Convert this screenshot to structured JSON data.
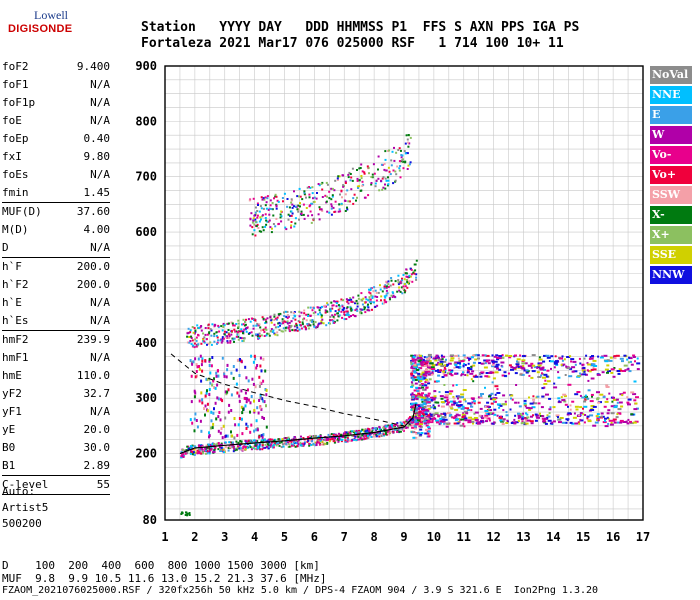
{
  "logo": {
    "line1": "Lowell",
    "line2": "DIGISONDE"
  },
  "header": {
    "line1": "Station   YYYY DAY   DDD HHMMSS P1  FFS S AXN PPS IGA PS",
    "line2": "Fortaleza 2021 Mar17 076 025000 RSF   1 714 100 10+ 11"
  },
  "params": [
    {
      "k": "foF2",
      "v": "9.400"
    },
    {
      "k": "foF1",
      "v": "N/A"
    },
    {
      "k": "foF1p",
      "v": "N/A"
    },
    {
      "k": "foE",
      "v": "N/A"
    },
    {
      "k": "foEp",
      "v": "0.40"
    },
    {
      "k": "fxI",
      "v": "9.80"
    },
    {
      "k": "foEs",
      "v": "N/A"
    },
    {
      "k": "fmin",
      "v": "1.45",
      "sep": true
    },
    {
      "k": "MUF(D)",
      "v": "37.60"
    },
    {
      "k": "M(D)",
      "v": "4.00"
    },
    {
      "k": "D",
      "v": "N/A",
      "sep": true
    },
    {
      "k": "h`F",
      "v": "200.0"
    },
    {
      "k": "h`F2",
      "v": "200.0"
    },
    {
      "k": "h`E",
      "v": "N/A"
    },
    {
      "k": "h`Es",
      "v": "N/A",
      "sep": true
    },
    {
      "k": "hmF2",
      "v": "239.9"
    },
    {
      "k": "hmF1",
      "v": "N/A"
    },
    {
      "k": "hmE",
      "v": "110.0"
    },
    {
      "k": "yF2",
      "v": "32.7"
    },
    {
      "k": "yF1",
      "v": "N/A"
    },
    {
      "k": "yE",
      "v": "20.0"
    },
    {
      "k": "B0",
      "v": "30.0"
    },
    {
      "k": "B1",
      "v": "2.89",
      "sep": true
    },
    {
      "k": "C-level",
      "v": "55",
      "sep": true
    }
  ],
  "auto": {
    "line1": "Auto:",
    "line2": "Artist5",
    "line3": "500200"
  },
  "legend": [
    {
      "label": "NoVal",
      "color": "#8c8c8c"
    },
    {
      "label": "NNE",
      "color": "#00bfff"
    },
    {
      "label": "E",
      "color": "#3aa0e8"
    },
    {
      "label": "W",
      "color": "#b000a8"
    },
    {
      "label": "Vo-",
      "color": "#e8008c"
    },
    {
      "label": "Vo+",
      "color": "#f0003c"
    },
    {
      "label": "SSW",
      "color": "#f4a0a8"
    },
    {
      "label": "X-",
      "color": "#007a10"
    },
    {
      "label": "X+",
      "color": "#8cc060"
    },
    {
      "label": "SSE",
      "color": "#d0d000"
    },
    {
      "label": "NNW",
      "color": "#1010e0"
    }
  ],
  "chart_data": {
    "type": "scatter",
    "title": "",
    "xlabel": "",
    "ylabel": "",
    "xlim": [
      1,
      17
    ],
    "ylim": [
      80,
      900
    ],
    "xticks": [
      1,
      2,
      3,
      4,
      5,
      6,
      7,
      8,
      9,
      10,
      11,
      12,
      13,
      14,
      15,
      16,
      17
    ],
    "yticks": [
      80,
      200,
      300,
      400,
      500,
      600,
      700,
      800,
      900
    ],
    "grid": true,
    "traces": [
      {
        "name": "O-trace",
        "x": [
          1.5,
          2,
          3,
          4,
          5,
          6,
          7,
          8,
          9,
          9.3,
          9.4
        ],
        "y": [
          200,
          205,
          210,
          214,
          218,
          222,
          228,
          236,
          248,
          262,
          280
        ]
      },
      {
        "name": "second-hop",
        "x": [
          1.7,
          3,
          4,
          5,
          6,
          7,
          8,
          9,
          9.4
        ],
        "y": [
          405,
          410,
          420,
          430,
          440,
          455,
          475,
          505,
          525
        ]
      },
      {
        "name": "third-hop",
        "x": [
          3.8,
          4.5,
          5,
          6,
          7,
          8,
          8.8,
          9.2
        ],
        "y": [
          615,
          620,
          625,
          640,
          660,
          690,
          715,
          740
        ]
      }
    ],
    "model_profile": {
      "x": [
        1.5,
        2,
        3,
        4,
        5,
        6,
        7,
        8,
        9,
        9.3,
        9.4
      ],
      "y": [
        200,
        210,
        215,
        219,
        223,
        228,
        232,
        238,
        248,
        265,
        290
      ]
    },
    "model_dashed": {
      "x": [
        1.2,
        2,
        3,
        4,
        5,
        6,
        7,
        8,
        9
      ],
      "y": [
        380,
        345,
        325,
        310,
        296,
        285,
        272,
        262,
        250
      ]
    },
    "spread_region": {
      "x": [
        9.2,
        16.8
      ],
      "y": [
        250,
        380
      ]
    },
    "dtable": {
      "d_label": "D",
      "d": [
        "100",
        "200",
        "400",
        "600",
        "800",
        "1000",
        "1500",
        "3000"
      ],
      "d_unit": "[km]",
      "muf_label": "MUF",
      "muf": [
        "9.8",
        "9.9",
        "10.5",
        "11.6",
        "13.0",
        "15.2",
        "21.3",
        "37.6"
      ],
      "muf_unit": "[MHz]"
    }
  },
  "footer": "FZAOM_2021076025000.RSF / 320fx256h 50 kHz 5.0 km / DPS-4 FZAOM 904 / 3.9 S 321.6 E  Ion2Png 1.3.20"
}
